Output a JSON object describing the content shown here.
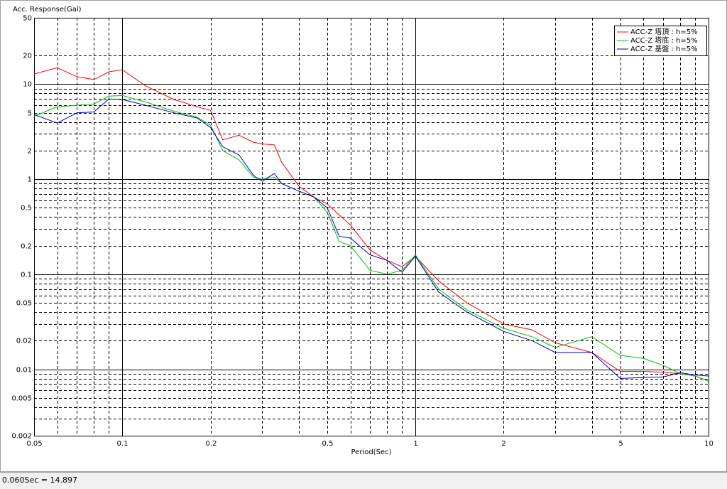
{
  "chart_data": {
    "type": "line",
    "y_label": "Acc. Response(Gal)",
    "x_label": "Period(Sec)",
    "status": "0.060Sec = 14.897",
    "log_x": true,
    "log_y": true,
    "grid": true,
    "legend": "upper right",
    "xlim": [
      0.05,
      10
    ],
    "ylim": [
      0.002,
      50
    ],
    "xticks": [
      0.05,
      0.1,
      0.2,
      0.5,
      1,
      2,
      5,
      10
    ],
    "yticks": [
      0.002,
      0.005,
      0.01,
      0.02,
      0.05,
      0.1,
      0.2,
      0.5,
      1,
      2,
      5,
      10,
      20,
      50
    ],
    "x_minor_grid": [
      0.06,
      0.07,
      0.08,
      0.09,
      0.3,
      0.4,
      0.6,
      0.7,
      0.8,
      0.9,
      3,
      4,
      6,
      7,
      8,
      9
    ],
    "y_minor_grid": [
      0.003,
      0.004,
      0.006,
      0.007,
      0.008,
      0.009,
      0.03,
      0.04,
      0.06,
      0.07,
      0.08,
      0.09,
      0.3,
      0.4,
      0.6,
      0.7,
      0.8,
      0.9,
      3,
      4,
      6,
      7,
      8,
      9
    ],
    "x": [
      0.05,
      0.06,
      0.07,
      0.08,
      0.09,
      0.1,
      0.12,
      0.15,
      0.18,
      0.2,
      0.22,
      0.25,
      0.28,
      0.3,
      0.33,
      0.35,
      0.4,
      0.45,
      0.5,
      0.55,
      0.6,
      0.7,
      0.8,
      0.9,
      1,
      1.2,
      1.5,
      2,
      2.5,
      3,
      4,
      5,
      6,
      7,
      8,
      9,
      10
    ],
    "series": [
      {
        "name": "ACC-Z 塔頂 : h=5%",
        "color": "#ff0000",
        "values": [
          12.8,
          14.9,
          12.0,
          11.2,
          13.5,
          14.2,
          9.6,
          6.9,
          5.8,
          5.3,
          2.6,
          2.9,
          2.45,
          2.35,
          2.3,
          1.5,
          0.85,
          0.65,
          0.55,
          0.42,
          0.33,
          0.18,
          0.14,
          0.12,
          0.155,
          0.085,
          0.05,
          0.03,
          0.026,
          0.019,
          0.015,
          0.0095,
          0.0095,
          0.0093,
          0.009,
          0.0085,
          0.0075
        ]
      },
      {
        "name": "ACC-Z 塔底 : h=5%",
        "color": "#00c000",
        "values": [
          4.6,
          5.8,
          6.0,
          6.2,
          7.5,
          7.6,
          6.5,
          5.2,
          4.5,
          3.7,
          2.0,
          1.6,
          1.05,
          1.0,
          1.05,
          0.9,
          0.75,
          0.65,
          0.45,
          0.22,
          0.2,
          0.11,
          0.1,
          0.11,
          0.16,
          0.07,
          0.042,
          0.027,
          0.022,
          0.017,
          0.022,
          0.014,
          0.013,
          0.011,
          0.009,
          0.0085,
          0.0075
        ]
      },
      {
        "name": "ACC-Z 基盤 : h=5%",
        "color": "#0000c0",
        "values": [
          4.8,
          3.9,
          5.0,
          5.1,
          7.0,
          6.9,
          6.0,
          5.0,
          4.4,
          3.5,
          2.2,
          1.8,
          1.1,
          0.95,
          1.15,
          0.9,
          0.75,
          0.65,
          0.5,
          0.25,
          0.24,
          0.16,
          0.14,
          0.105,
          0.155,
          0.065,
          0.04,
          0.025,
          0.02,
          0.015,
          0.015,
          0.008,
          0.0082,
          0.0083,
          0.0092,
          0.0087,
          0.0085
        ]
      }
    ]
  }
}
